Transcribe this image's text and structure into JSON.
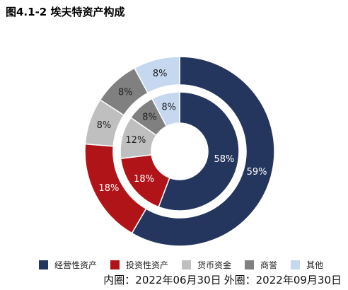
{
  "title": "图4.1-2 埃夫特资产构成",
  "note": {
    "inner": "内圈：2022年06月30日",
    "outer": "外圈：2022年09月30日"
  },
  "colors": {
    "经营性资产": "#24355e",
    "投资性资产": "#b01418",
    "货币资金": "#bfbfbf",
    "商誉": "#808080",
    "其他": "#c5d8ef"
  },
  "chart_data": {
    "type": "donut",
    "title": "图4.1-2 埃夫特资产构成",
    "categories": [
      "经营性资产",
      "投资性资产",
      "货币资金",
      "商誉",
      "其他"
    ],
    "series": [
      {
        "name": "内圈：2022年06月30日",
        "values": [
          58,
          18,
          12,
          8,
          8
        ],
        "labels": [
          "58%",
          "18%",
          "12%",
          "8%",
          "8%"
        ]
      },
      {
        "name": "外圈：2022年09月30日",
        "values": [
          59,
          18,
          8,
          8,
          8
        ],
        "labels": [
          "59%",
          "18%",
          "8%",
          "8%",
          "8%"
        ]
      }
    ],
    "legend_position": "bottom"
  }
}
